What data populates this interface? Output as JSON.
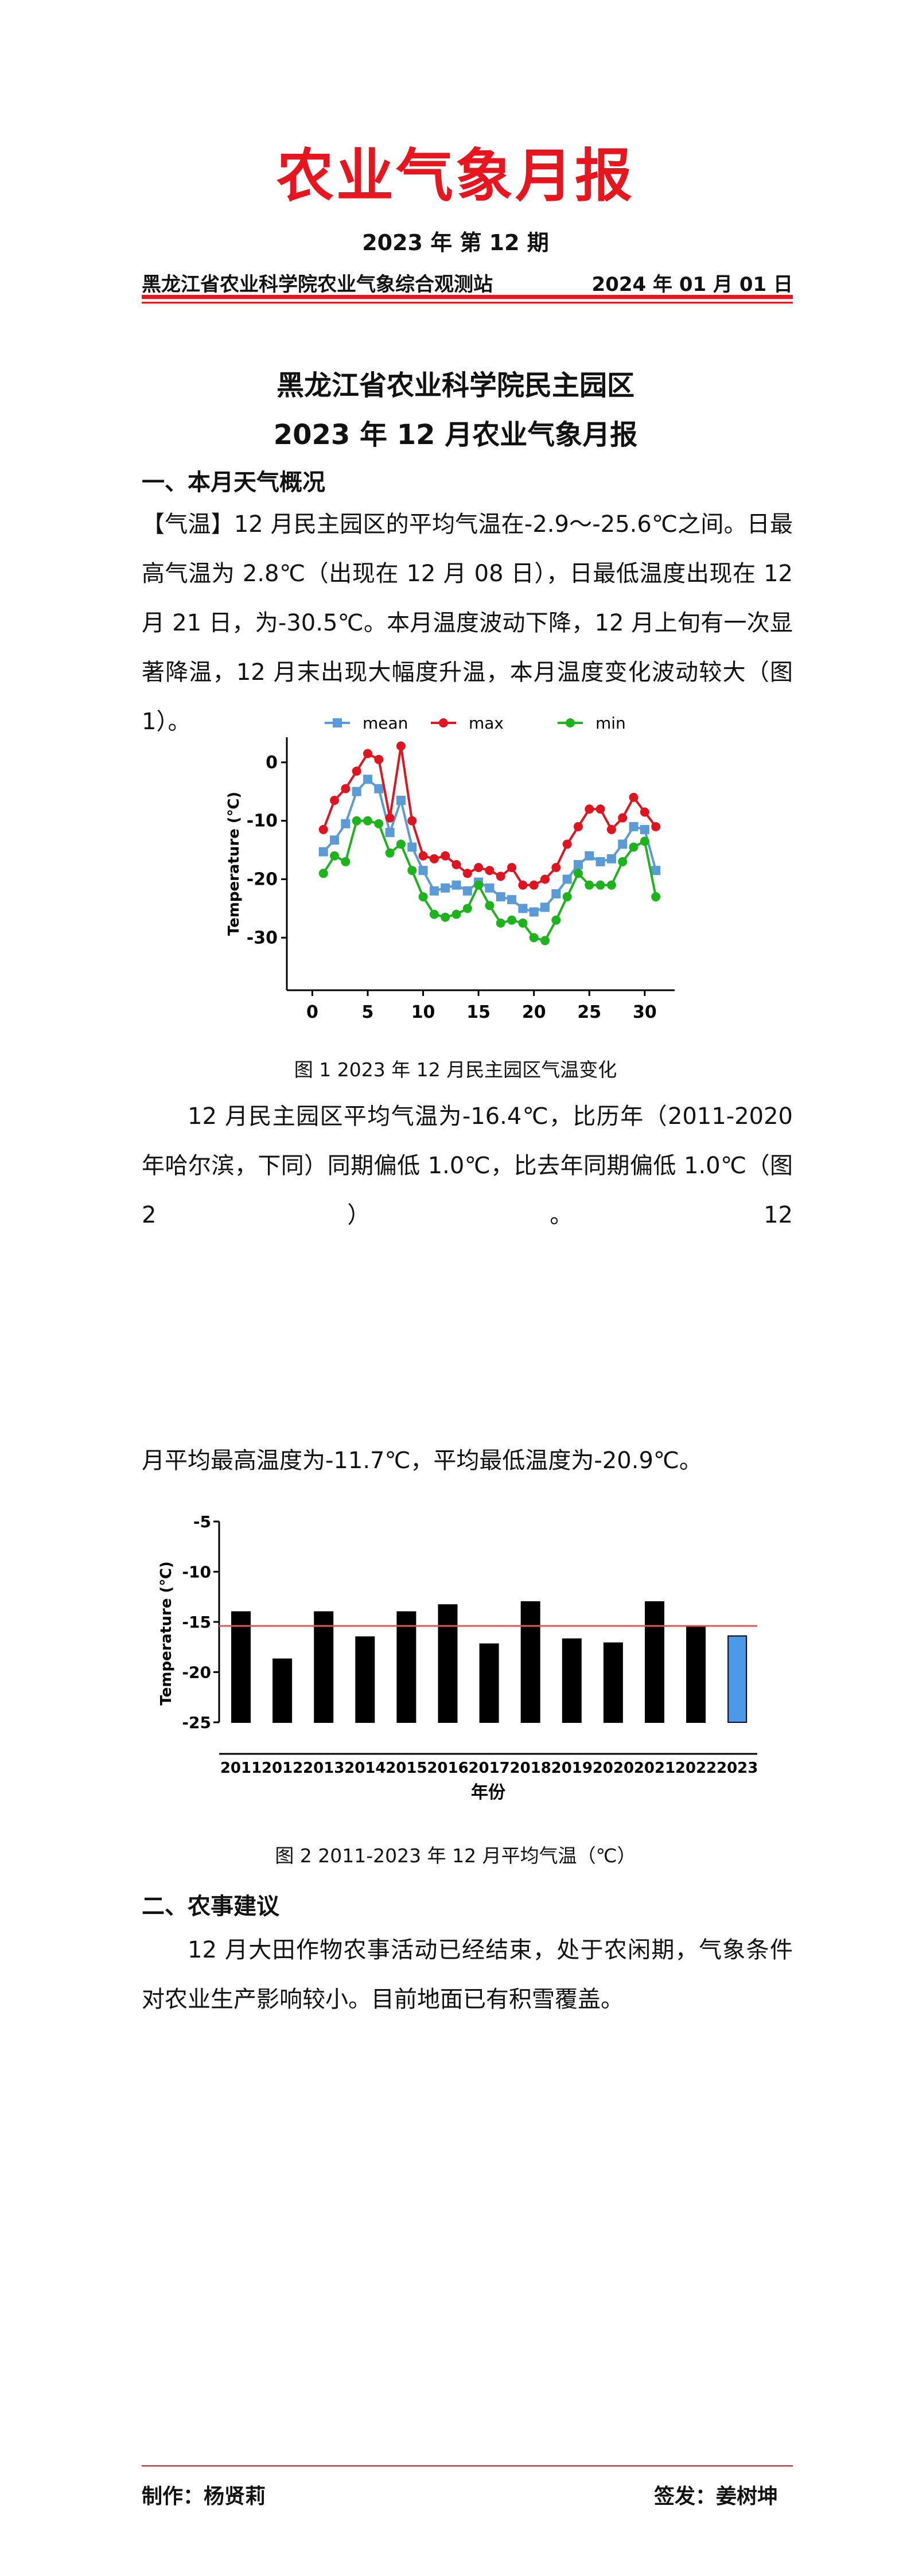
{
  "header": {
    "title": "农业气象月报",
    "issue": "2023 年  第 12 期",
    "station": "黑龙江省农业科学院农业气象综合观测站",
    "date": "2024 年 01 月 01 日"
  },
  "heading": [
    "黑龙江省农业科学院民主园区",
    "2023 年 12 月农业气象月报"
  ],
  "section1": {
    "title": "一、本月天气概况",
    "p1": "【气温】12 月民主园区的平均气温在-2.9～-25.6℃之间。日最高气温为 2.8℃（出现在 12 月 08 日），日最低温度出现在 12 月 21 日，为-30.5℃。本月温度波动下降，12 月上旬有一次显著降温，12 月末出现大幅度升温，本月温度变化波动较大（图 1）。",
    "caption1": "图 1 2023 年 12 月民主园区气温变化",
    "p2": [
      "12 月民主园区平均气温为-16.4℃，比历年（2011-2020 年哈尔滨，下同）同期偏低 1.0℃，比去年同期偏低 1.0℃（图 2）。12",
      "月平均最高温度为-11.7℃，平均最低温度为-20.9℃。"
    ],
    "caption2": "图 2 2011-2023 年 12 月平均气温（℃）"
  },
  "section2": {
    "title": "二、农事建议",
    "p": "12 月大田作物农事活动已经结束，处于农闲期，气象条件对农业生产影响较小。目前地面已有积雪覆盖。"
  },
  "footer": {
    "maker": "制作：杨贤莉",
    "signer": "签发：姜树坤"
  },
  "chart_data": [
    {
      "type": "line",
      "ylabel": "Temperature (℃)",
      "x": [
        1,
        2,
        3,
        4,
        5,
        6,
        7,
        8,
        9,
        10,
        11,
        12,
        13,
        14,
        15,
        16,
        17,
        18,
        19,
        20,
        21,
        22,
        23,
        24,
        25,
        26,
        27,
        28,
        29,
        30,
        31
      ],
      "series": [
        {
          "name": "mean",
          "color": "#5b9bd5",
          "marker": "square",
          "values": [
            -15.3,
            -13.3,
            -10.5,
            -5,
            -2.9,
            -4.5,
            -12,
            -6.5,
            -14.5,
            -18.5,
            -22,
            -21.5,
            -21,
            -22,
            -20.5,
            -21.5,
            -23,
            -23.5,
            -25,
            -25.6,
            -24.8,
            -22.5,
            -20,
            -17.5,
            -16,
            -17,
            -16.5,
            -14,
            -11,
            -11.5,
            -18.5
          ]
        },
        {
          "name": "max",
          "color": "#e0141e",
          "marker": "circle",
          "values": [
            -11.5,
            -6.5,
            -4.5,
            -1.5,
            1.5,
            0.5,
            -9.5,
            2.8,
            -10,
            -16,
            -16.5,
            -16,
            -17.5,
            -19,
            -18,
            -18.5,
            -19.5,
            -18,
            -21,
            -21,
            -20,
            -18,
            -14,
            -11,
            -8,
            -8,
            -11.5,
            -9.5,
            -6,
            -8.5,
            -11
          ]
        },
        {
          "name": "min",
          "color": "#1db31d",
          "marker": "circle",
          "values": [
            -19,
            -16,
            -17,
            -10,
            -10,
            -10.5,
            -15.5,
            -14,
            -18.5,
            -23,
            -26,
            -26.5,
            -26,
            -25,
            -21,
            -24.5,
            -27.5,
            -27,
            -27.5,
            -30,
            -30.5,
            -27,
            -23,
            -19,
            -21,
            -21,
            -21,
            -17,
            -14.5,
            -13.5,
            -23
          ]
        }
      ],
      "xlim": [
        -2.3,
        32.7
      ],
      "ylim": [
        -39,
        4.3
      ],
      "xticks": [
        0,
        5,
        10,
        15,
        20,
        25,
        30
      ],
      "yticks": [
        0,
        -10,
        -20,
        -30
      ]
    },
    {
      "type": "bar",
      "ylabel": "Temperature (℃)",
      "xlabel": "年份",
      "categories": [
        "2011",
        "2012",
        "2013",
        "2014",
        "2015",
        "2016",
        "2017",
        "2018",
        "2019",
        "2020",
        "2021",
        "2022",
        "2023"
      ],
      "values": [
        -14,
        -18.7,
        -14,
        -16.5,
        -14,
        -13.3,
        -17.2,
        -13,
        -16.7,
        -17.1,
        -13,
        -15.4,
        -16.4
      ],
      "colors": [
        "#000000",
        "#000000",
        "#000000",
        "#000000",
        "#000000",
        "#000000",
        "#000000",
        "#000000",
        "#000000",
        "#000000",
        "#000000",
        "#000000",
        "#4a9ae8"
      ],
      "reference_line": {
        "value": -15.4,
        "color": "#e05555"
      },
      "ylim": [
        -25,
        -5
      ],
      "yticks": [
        -5,
        -10,
        -15,
        -20,
        -25
      ]
    }
  ]
}
